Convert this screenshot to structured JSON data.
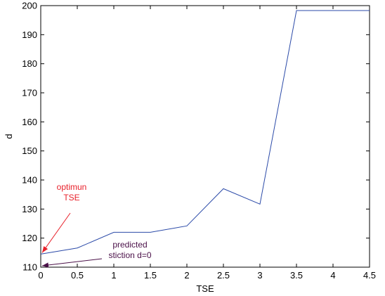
{
  "chart_data": {
    "type": "line",
    "xlabel": "TSE",
    "ylabel": "d",
    "xlim": [
      0,
      4.5
    ],
    "ylim": [
      110,
      200
    ],
    "xticks": [
      "0",
      "0.5",
      "1",
      "1.5",
      "2",
      "2.5",
      "3",
      "3.5",
      "4",
      "4.5"
    ],
    "yticks": [
      "110",
      "120",
      "130",
      "140",
      "150",
      "160",
      "170",
      "180",
      "190",
      "200"
    ],
    "grid": false,
    "series": [
      {
        "color": "#2b4aa8",
        "x": [
          0,
          0.5,
          1,
          1.5,
          2,
          2.5,
          3,
          3.5,
          4,
          4.5
        ],
        "y": [
          114.5,
          116.6,
          122,
          122,
          124.2,
          137,
          131.7,
          198.3,
          198.3,
          198.3
        ]
      }
    ],
    "annotations": [
      {
        "lines": [
          "optimun",
          "TSE"
        ],
        "color": "#e8202a",
        "points_to": [
          0,
          114.5
        ]
      },
      {
        "lines": [
          "predicted",
          "stiction d=0"
        ],
        "color": "#4a1048",
        "points_to": [
          0,
          110
        ]
      }
    ]
  }
}
